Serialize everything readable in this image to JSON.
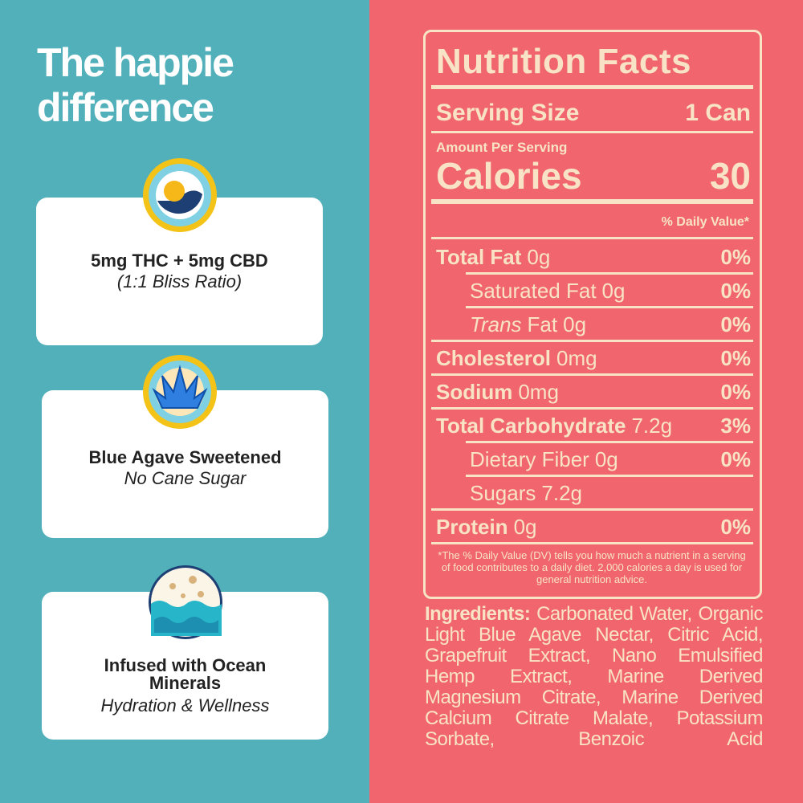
{
  "left": {
    "title": "The happie difference",
    "features": [
      {
        "title": "5mg THC + 5mg CBD",
        "subtitle": "(1:1 Bliss Ratio)"
      },
      {
        "title": "Blue Agave Sweetened",
        "subtitle": "No Cane Sugar"
      },
      {
        "title": "Infused with Ocean Minerals",
        "subtitle": "Hydration & Wellness"
      }
    ]
  },
  "nutrition": {
    "title": "Nutrition Facts",
    "serving": {
      "label": "Serving Size",
      "value": "1 Can"
    },
    "amount_per_serving": "Amount Per Serving",
    "calories": {
      "label": "Calories",
      "value": "30"
    },
    "daily_value_header": "% Daily Value*",
    "rows": [
      {
        "name": "Total Fat",
        "amount": "0g",
        "dv": "0%",
        "sub": [
          {
            "name": "Saturated Fat",
            "amount": "0g",
            "dv": "0%"
          },
          {
            "italic": "Trans",
            "name": "Fat",
            "amount": "0g",
            "dv": "0%"
          }
        ]
      },
      {
        "name": "Cholesterol",
        "amount": "0mg",
        "dv": "0%"
      },
      {
        "name": "Sodium",
        "amount": "0mg",
        "dv": "0%"
      },
      {
        "name": "Total Carbohydrate",
        "amount": "7.2g",
        "dv": "3%",
        "sub": [
          {
            "name": "Dietary Fiber",
            "amount": "0g",
            "dv": "0%"
          },
          {
            "name": "Sugars",
            "amount": "7.2g"
          }
        ]
      },
      {
        "name": "Protein",
        "amount": "0g",
        "dv": "0%"
      }
    ],
    "footnote": "*The % Daily Value (DV) tells you how much a nutrient in a serving of food contributes to a daily diet. 2,000 calories a day is used for general nutrition advice.",
    "ingredients": {
      "label": "Ingredients:",
      "text": "Carbonated Water, Organic Light Blue Agave Nectar, Citric Acid, Grapefruit Extract, Nano Emulsified Hemp Extract, Marine Derived Magnesium Citrate, Marine Derived Calcium Citrate Malate, Potassium Sorbate, Benzoic Acid"
    }
  }
}
